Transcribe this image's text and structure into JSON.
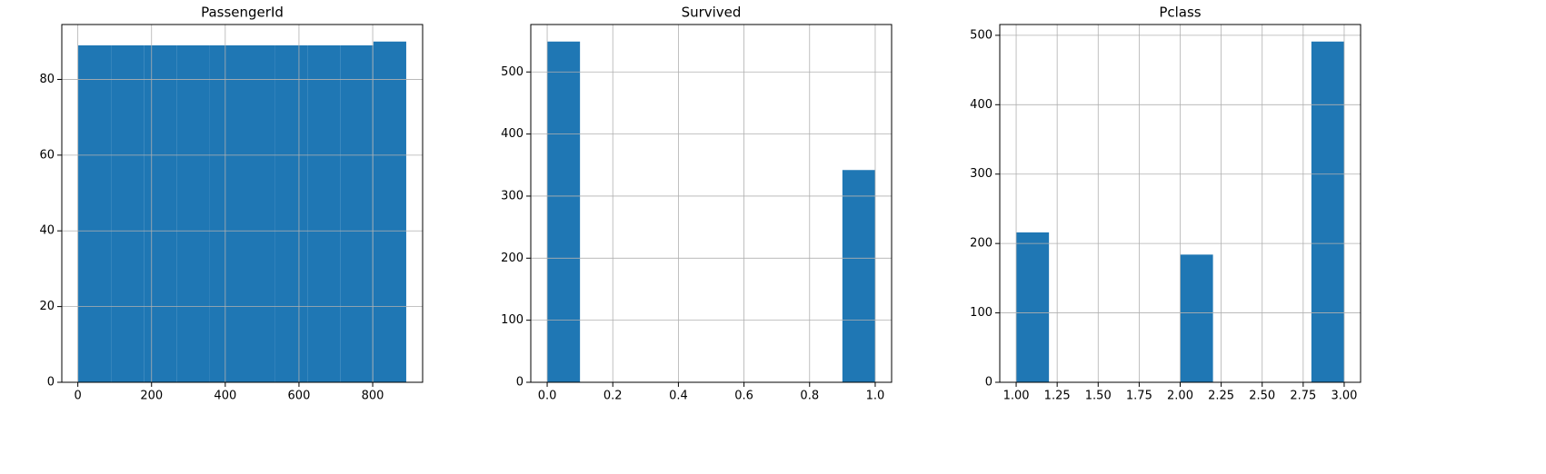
{
  "chart_data": [
    {
      "type": "histogram",
      "title": "PassengerId",
      "color": "#1f77b4",
      "grid": true,
      "bins": [
        1,
        90,
        179,
        268,
        357,
        446,
        535,
        624,
        713,
        802,
        891
      ],
      "values": [
        89,
        89,
        89,
        89,
        89,
        89,
        89,
        89,
        89,
        90
      ],
      "xlim": [
        -43.5,
        935.5
      ],
      "ylim": [
        0,
        94.5
      ],
      "xticks": [
        0,
        200,
        400,
        600,
        800
      ],
      "yticks": [
        0,
        20,
        40,
        60,
        80
      ]
    },
    {
      "type": "histogram",
      "title": "Survived",
      "color": "#1f77b4",
      "grid": true,
      "bins": [
        0,
        0.1,
        0.2,
        0.3,
        0.4,
        0.5,
        0.6,
        0.7,
        0.8,
        0.9,
        1
      ],
      "values": [
        549,
        0,
        0,
        0,
        0,
        0,
        0,
        0,
        0,
        342
      ],
      "xlim": [
        -0.05,
        1.05
      ],
      "ylim": [
        0,
        576.45
      ],
      "xticks": [
        {
          "value": 0,
          "label": "0.0"
        },
        0.2,
        0.4,
        0.6,
        0.8,
        {
          "value": 1,
          "label": "1.0"
        }
      ],
      "yticks": [
        0,
        100,
        200,
        300,
        400,
        500
      ]
    },
    {
      "type": "histogram",
      "title": "Pclass",
      "color": "#1f77b4",
      "grid": true,
      "bins": [
        1,
        1.2,
        1.4,
        1.6,
        1.8,
        2,
        2.2,
        2.4,
        2.6,
        2.8,
        3
      ],
      "values": [
        216,
        0,
        0,
        0,
        0,
        184,
        0,
        0,
        0,
        491
      ],
      "xlim": [
        0.9,
        3.1
      ],
      "ylim": [
        0,
        515.55
      ],
      "xticks": [
        {
          "value": 1,
          "label": "1.00"
        },
        1.25,
        {
          "value": 1.5,
          "label": "1.50"
        },
        1.75,
        {
          "value": 2,
          "label": "2.00"
        },
        2.25,
        {
          "value": 2.5,
          "label": "2.50"
        },
        2.75,
        {
          "value": 3,
          "label": "3.00"
        }
      ],
      "yticks": [
        0,
        100,
        200,
        300,
        400,
        500
      ]
    }
  ]
}
